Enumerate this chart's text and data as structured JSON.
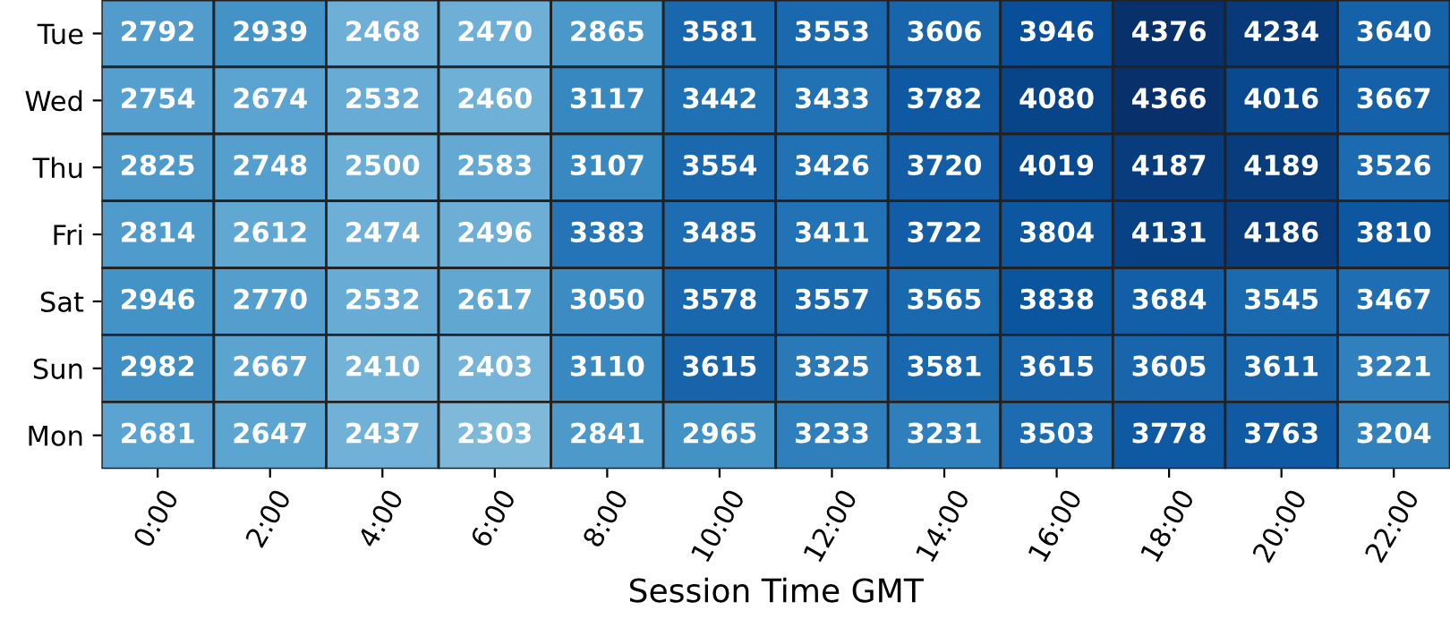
{
  "chart_data": {
    "type": "heatmap",
    "xlabel": "Session Time GMT",
    "categories": [
      "0:00",
      "2:00",
      "4:00",
      "6:00",
      "8:00",
      "10:00",
      "12:00",
      "14:00",
      "16:00",
      "18:00",
      "20:00",
      "22:00"
    ],
    "y_categories": [
      "Tue",
      "Wed",
      "Thu",
      "Fri",
      "Sat",
      "Sun",
      "Mon"
    ],
    "cells": [
      [
        2792,
        2939,
        2468,
        2470,
        2865,
        3581,
        3553,
        3606,
        3946,
        4376,
        4234,
        3640
      ],
      [
        2754,
        2674,
        2532,
        2460,
        3117,
        3442,
        3433,
        3782,
        4080,
        4366,
        4016,
        3667
      ],
      [
        2825,
        2748,
        2500,
        2583,
        3107,
        3554,
        3426,
        3720,
        4019,
        4187,
        4189,
        3526
      ],
      [
        2814,
        2612,
        2474,
        2496,
        3383,
        3485,
        3411,
        3722,
        3804,
        4131,
        4186,
        3810
      ],
      [
        2946,
        2770,
        2532,
        2617,
        3050,
        3578,
        3557,
        3565,
        3838,
        3684,
        3545,
        3467
      ],
      [
        2982,
        2667,
        2410,
        2403,
        3110,
        3615,
        3325,
        3581,
        3615,
        3605,
        3611,
        3221
      ],
      [
        2681,
        2647,
        2437,
        2303,
        2841,
        2965,
        3233,
        3231,
        3503,
        3778,
        3763,
        3204
      ]
    ],
    "data_labels": true
  }
}
